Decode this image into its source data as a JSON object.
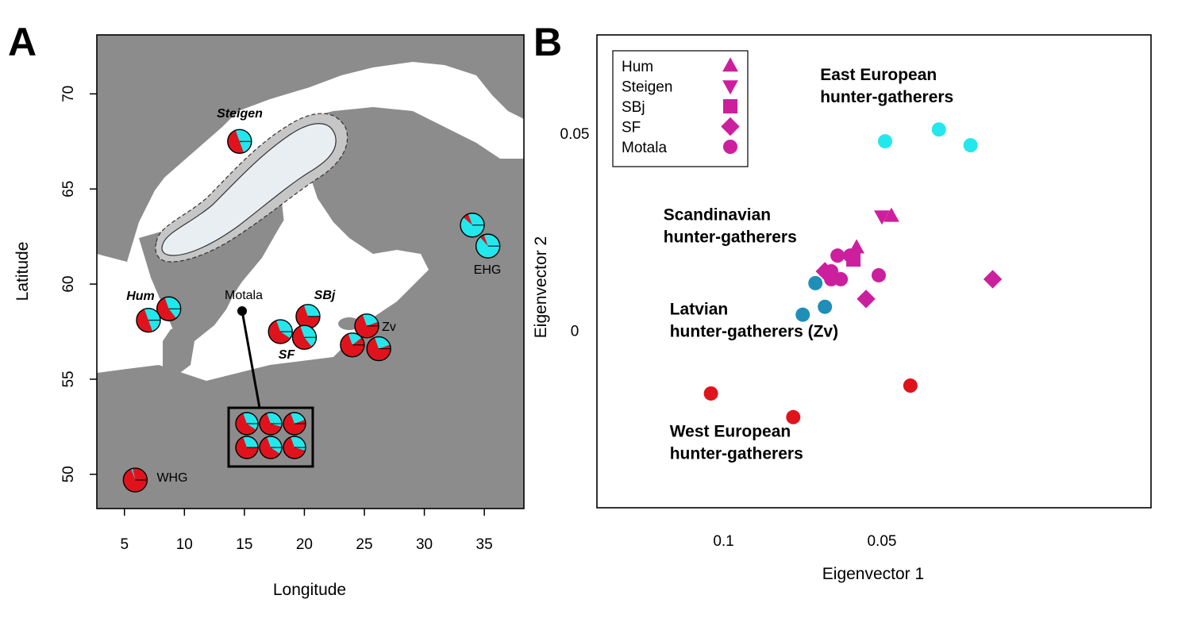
{
  "colors": {
    "whg": "#e0131d",
    "ehg": "#22e8ee",
    "latvian": "#1f8fb8",
    "sca": "#cc1f9e",
    "land": "#8c8c8c",
    "ice": "#e8eef2"
  },
  "panel_a": {
    "label": "A",
    "chart_data": {
      "type": "scatter",
      "xlabel": "Longitude",
      "ylabel": "Latitude",
      "xlim": [
        2.7,
        38.3
      ],
      "ylim": [
        48.2,
        73.1
      ],
      "xticks": [
        5,
        10,
        15,
        20,
        25,
        30,
        35
      ],
      "yticks": [
        50,
        55,
        60,
        65,
        70
      ],
      "pies": [
        {
          "lon": 14.6,
          "lat": 67.5,
          "ehg": 0.5
        },
        {
          "lon": 8.7,
          "lat": 58.7,
          "ehg": 0.45
        },
        {
          "lon": 7.0,
          "lat": 58.1,
          "ehg": 0.5
        },
        {
          "lon": 20.3,
          "lat": 58.3,
          "ehg": 0.3
        },
        {
          "lon": 18.0,
          "lat": 57.5,
          "ehg": 0.4
        },
        {
          "lon": 20.0,
          "lat": 57.2,
          "ehg": 0.45
        },
        {
          "lon": 25.2,
          "lat": 57.8,
          "ehg": 0.25
        },
        {
          "lon": 24.0,
          "lat": 56.8,
          "ehg": 0.2
        },
        {
          "lon": 26.2,
          "lat": 56.6,
          "ehg": 0.25
        },
        {
          "lon": 34.0,
          "lat": 63.1,
          "ehg": 0.92
        },
        {
          "lon": 35.3,
          "lat": 62.0,
          "ehg": 0.94
        },
        {
          "lon": 5.9,
          "lat": 49.7,
          "ehg": 0.02
        }
      ],
      "inset_pies": [
        0.4,
        0.35,
        0.25,
        0.3,
        0.4,
        0.35
      ],
      "motala": {
        "lon": 14.8,
        "lat": 58.5
      },
      "labels": {
        "steigen": "Steigen",
        "hum": "Hum",
        "motala": "Motala",
        "sbj": "SBj",
        "sf": "SF",
        "zv": "Zv",
        "ehg": "EHG",
        "whg": "WHG"
      }
    }
  },
  "panel_b": {
    "label": "B",
    "chart_data": {
      "type": "scatter",
      "xlabel": "Eigenvector 1",
      "ylabel": "Eigenvector 2",
      "xlim": [
        0.14,
        -0.035
      ],
      "ylim": [
        -0.045,
        0.075
      ],
      "xticks": [
        0.1,
        0.05
      ],
      "xtick_labels": [
        "0.1",
        "0.05"
      ],
      "yticks": [
        0,
        0.05
      ],
      "ytick_labels": [
        "0",
        "0.05"
      ],
      "legend": [
        {
          "name": "Hum",
          "shape": "triangle-up"
        },
        {
          "name": "Steigen",
          "shape": "triangle-down"
        },
        {
          "name": "SBj",
          "shape": "square"
        },
        {
          "name": "SF",
          "shape": "diamond"
        },
        {
          "name": "Motala",
          "shape": "circle"
        }
      ],
      "series": [
        {
          "group": "ehg",
          "shape": "circle",
          "points": [
            [
              0.049,
              0.048
            ],
            [
              0.032,
              0.051
            ],
            [
              0.022,
              0.047
            ]
          ]
        },
        {
          "group": "whg",
          "shape": "circle",
          "points": [
            [
              0.104,
              -0.016
            ],
            [
              0.078,
              -0.022
            ],
            [
              0.041,
              -0.014
            ]
          ]
        },
        {
          "group": "latvian",
          "shape": "circle",
          "points": [
            [
              0.071,
              0.012
            ],
            [
              0.068,
              0.006
            ],
            [
              0.075,
              0.004
            ]
          ]
        },
        {
          "group": "sca",
          "shape": "triangle-up",
          "points": [
            [
              0.047,
              0.029
            ],
            [
              0.058,
              0.021
            ]
          ]
        },
        {
          "group": "sca",
          "shape": "triangle-down",
          "points": [
            [
              0.05,
              0.029
            ]
          ]
        },
        {
          "group": "sca",
          "shape": "square",
          "points": [
            [
              0.059,
              0.018
            ]
          ]
        },
        {
          "group": "sca",
          "shape": "diamond",
          "points": [
            [
              0.068,
              0.015
            ],
            [
              0.055,
              0.008
            ],
            [
              0.015,
              0.013
            ]
          ]
        },
        {
          "group": "sca",
          "shape": "circle",
          "points": [
            [
              0.064,
              0.019
            ],
            [
              0.06,
              0.019
            ],
            [
              0.066,
              0.015
            ],
            [
              0.066,
              0.013
            ],
            [
              0.063,
              0.013
            ],
            [
              0.051,
              0.014
            ]
          ]
        }
      ],
      "annotations": [
        {
          "lines": [
            "East European",
            "hunter-gatherers"
          ],
          "x": 0.0695,
          "y": 0.0635
        },
        {
          "lines": [
            "Scandinavian",
            "hunter-gatherers"
          ],
          "x": 0.119,
          "y": 0.028
        },
        {
          "lines": [
            "Latvian",
            "hunter-gatherers (Zv)"
          ],
          "x": 0.117,
          "y": 0.004
        },
        {
          "lines": [
            "West European",
            "hunter-gatherers"
          ],
          "x": 0.117,
          "y": -0.027
        }
      ]
    }
  }
}
